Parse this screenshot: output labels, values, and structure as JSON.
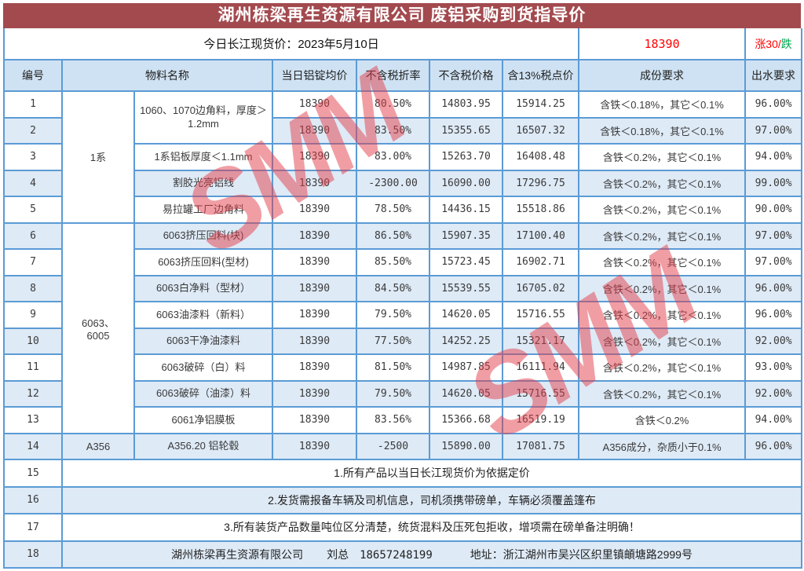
{
  "title": "湖州栋梁再生资源有限公司 废铝采购到货指导价",
  "info": {
    "spot_label": "今日长江现货价：2023年5月10日",
    "price": "18390",
    "change_up": "涨30/",
    "change_down": "跌"
  },
  "watermark": {
    "text": "SMM",
    "color": "#E23E49"
  },
  "colors": {
    "title_bg": "#A34A4F",
    "border_blue": "#5B9BD5",
    "header_bg": "#CFE2F3",
    "zebra_bg": "#DEEAF6",
    "price_red": "#FF0000",
    "down_green": "#00A651"
  },
  "table": {
    "headers": [
      "编号",
      "物料名称",
      "当日铝锭均价",
      "不含税折率",
      "不含税价格",
      "含13%税点价",
      "成份要求",
      "出水要求"
    ],
    "rows": [
      {
        "no": "1",
        "cat": {
          "text": "1系",
          "rowspan": 5
        },
        "mat": {
          "text": "1060、1070边角料，厚度＞1.2mm",
          "rowspan": 2
        },
        "avg": "18390",
        "rate": "80.50%",
        "price": "14803.95",
        "tax": "15914.25",
        "comp": "含铁＜0.18%，其它＜0.1%",
        "yield": "96.00%"
      },
      {
        "no": "2",
        "avg": "18390",
        "rate": "83.50%",
        "price": "15355.65",
        "tax": "16507.32",
        "comp": "含铁＜0.18%，其它＜0.1%",
        "yield": "97.00%"
      },
      {
        "no": "3",
        "mat": "1系铝板厚度＜1.1mm",
        "avg": "18390",
        "rate": "83.00%",
        "price": "15263.70",
        "tax": "16408.48",
        "comp": "含铁＜0.2%，其它＜0.1%",
        "yield": "94.00%"
      },
      {
        "no": "4",
        "mat": "割胶光亮铝线",
        "avg": "18390",
        "rate": "-2300.00",
        "price": "16090.00",
        "tax": "17296.75",
        "comp": "含铁＜0.2%，其它＜0.1%",
        "yield": "99.00%"
      },
      {
        "no": "5",
        "mat": "易拉罐工厂边角料",
        "avg": "18390",
        "rate": "78.50%",
        "price": "14436.15",
        "tax": "15518.86",
        "comp": "含铁＜0.2%，其它＜0.1%",
        "yield": "90.00%"
      },
      {
        "no": "6",
        "cat": {
          "text": "6063、\n6005",
          "rowspan": 8
        },
        "mat": "6063挤压回料(块)",
        "avg": "18390",
        "rate": "86.50%",
        "price": "15907.35",
        "tax": "17100.40",
        "comp": "含铁＜0.2%，其它＜0.1%",
        "yield": "97.00%"
      },
      {
        "no": "7",
        "mat": "6063挤压回料(型材)",
        "avg": "18390",
        "rate": "85.50%",
        "price": "15723.45",
        "tax": "16902.71",
        "comp": "含铁＜0.2%，其它＜0.1%",
        "yield": "97.00%"
      },
      {
        "no": "8",
        "mat": "6063白净料（型材）",
        "avg": "18390",
        "rate": "84.50%",
        "price": "15539.55",
        "tax": "16705.02",
        "comp": "含铁＜0.2%，其它＜0.1%",
        "yield": "96.00%"
      },
      {
        "no": "9",
        "mat": "6063油漆料（新料）",
        "avg": "18390",
        "rate": "79.50%",
        "price": "14620.05",
        "tax": "15716.55",
        "comp": "含铁＜0.2%，其它＜0.1%",
        "yield": "96.00%"
      },
      {
        "no": "10",
        "mat": "6063干净油漆料",
        "avg": "18390",
        "rate": "77.50%",
        "price": "14252.25",
        "tax": "15321.17",
        "comp": "含铁＜0.2%，其它＜0.1%",
        "yield": "92.00%"
      },
      {
        "no": "11",
        "mat": "6063破碎（白）料",
        "avg": "18390",
        "rate": "81.50%",
        "price": "14987.85",
        "tax": "16111.94",
        "comp": "含铁＜0.2%，其它＜0.1%",
        "yield": "93.00%"
      },
      {
        "no": "12",
        "mat": "6063破碎（油漆）料",
        "avg": "18390",
        "rate": "79.50%",
        "price": "14620.05",
        "tax": "15716.55",
        "comp": "含铁＜0.2%，其它＜0.1%",
        "yield": "92.00%"
      },
      {
        "no": "13",
        "mat": "6061净铝膜板",
        "avg": "18390",
        "rate": "83.56%",
        "price": "15366.68",
        "tax": "16519.19",
        "comp": "含铁＜0.2%",
        "yield": "94.00%"
      },
      {
        "no": "14",
        "cat": {
          "text": "A356",
          "rowspan": 1
        },
        "mat": "A356.20 铝轮毂",
        "avg": "18390",
        "rate": "-2500",
        "price": "15890.00",
        "tax": "17081.75",
        "comp": "A356成分，杂质小于0.1%",
        "yield": "96.00%"
      }
    ],
    "notes": [
      {
        "no": "15",
        "text": "1.所有产品以当日长江现货价为依据定价"
      },
      {
        "no": "16",
        "text": "2.发货需报备车辆及司机信息，司机须携带磅单，车辆必须覆盖篷布"
      },
      {
        "no": "17",
        "text": "3.所有装货产品数量吨位区分清楚，统货混料及压死包拒收，增项需在磅单备注明确！"
      }
    ],
    "footer": {
      "no": "18",
      "company": "湖州栋梁再生资源有限公司",
      "contact": "刘总",
      "phone": "18657248199",
      "address": "地址：浙江湖州市吴兴区织里镇頔塘路2999号"
    }
  }
}
